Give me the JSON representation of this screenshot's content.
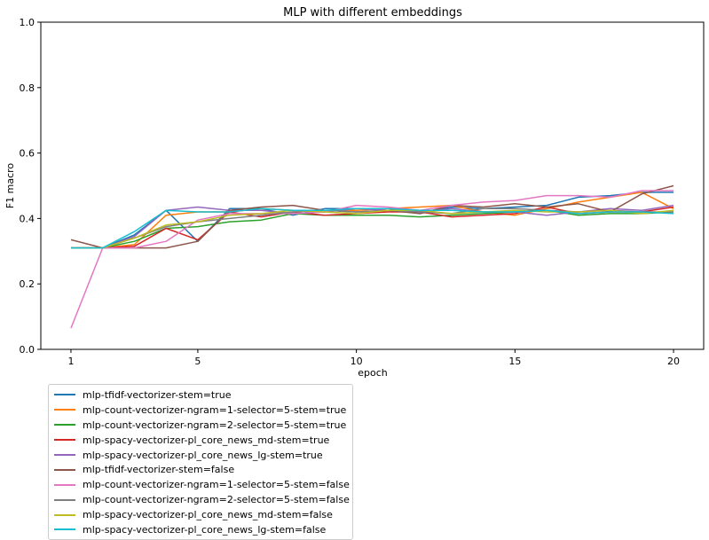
{
  "chart_data": {
    "type": "line",
    "title": "MLP with different embeddings",
    "xlabel": "epoch",
    "ylabel": "F1 macro",
    "xlim": [
      0.05,
      20.95
    ],
    "ylim": [
      0.0,
      1.0
    ],
    "xticks": [
      1,
      5,
      10,
      15,
      20
    ],
    "yticks": [
      0.0,
      0.2,
      0.4,
      0.6,
      0.8,
      1.0
    ],
    "grid": false,
    "legend_position": "below plot, left",
    "x": [
      1,
      2,
      3,
      4,
      5,
      6,
      7,
      8,
      9,
      10,
      11,
      12,
      13,
      14,
      15,
      16,
      17,
      18,
      19,
      20
    ],
    "series": [
      {
        "name": "mlp-tfidf-vectorizer-stem=true",
        "color": "#1f77b4",
        "values": [
          0.31,
          0.31,
          0.35,
          0.425,
          0.33,
          0.43,
          0.43,
          0.41,
          0.43,
          0.43,
          0.43,
          0.415,
          0.435,
          0.43,
          0.435,
          0.44,
          0.465,
          0.47,
          0.48,
          0.48
        ]
      },
      {
        "name": "mlp-count-vectorizer-ngram=1-selector=5-stem=true",
        "color": "#ff7f0e",
        "values": [
          0.31,
          0.31,
          0.32,
          0.41,
          0.42,
          0.42,
          0.43,
          0.425,
          0.425,
          0.425,
          0.43,
          0.435,
          0.44,
          0.42,
          0.41,
          0.43,
          0.45,
          0.465,
          0.48,
          0.43
        ]
      },
      {
        "name": "mlp-count-vectorizer-ngram=2-selector=5-stem=true",
        "color": "#2ca02c",
        "values": [
          0.31,
          0.31,
          0.33,
          0.37,
          0.375,
          0.39,
          0.395,
          0.415,
          0.41,
          0.41,
          0.41,
          0.405,
          0.41,
          0.415,
          0.42,
          0.425,
          0.41,
          0.415,
          0.415,
          0.42
        ]
      },
      {
        "name": "mlp-spacy-vectorizer-pl_core_news_md-stem=true",
        "color": "#d62728",
        "values": [
          0.31,
          0.31,
          0.315,
          0.37,
          0.335,
          0.42,
          0.405,
          0.42,
          0.41,
          0.415,
          0.42,
          0.42,
          0.405,
          0.41,
          0.415,
          0.435,
          0.415,
          0.42,
          0.42,
          0.435
        ]
      },
      {
        "name": "mlp-spacy-vectorizer-pl_core_news_lg-stem=true",
        "color": "#9467bd",
        "values": [
          0.31,
          0.31,
          0.345,
          0.425,
          0.435,
          0.425,
          0.425,
          0.415,
          0.42,
          0.43,
          0.425,
          0.42,
          0.43,
          0.42,
          0.42,
          0.41,
          0.42,
          0.43,
          0.425,
          0.44
        ]
      },
      {
        "name": "mlp-tfidf-vectorizer-stem=false",
        "color": "#8c564b",
        "values": [
          0.335,
          0.31,
          0.31,
          0.31,
          0.33,
          0.425,
          0.435,
          0.44,
          0.425,
          0.42,
          0.425,
          0.415,
          0.44,
          0.435,
          0.445,
          0.435,
          0.445,
          0.42,
          0.475,
          0.5
        ]
      },
      {
        "name": "mlp-count-vectorizer-ngram=1-selector=5-stem=false",
        "color": "#e377c2",
        "values": [
          0.065,
          0.31,
          0.31,
          0.33,
          0.395,
          0.415,
          0.415,
          0.415,
          0.42,
          0.44,
          0.435,
          0.425,
          0.44,
          0.45,
          0.455,
          0.47,
          0.47,
          0.465,
          0.485,
          0.485
        ]
      },
      {
        "name": "mlp-count-vectorizer-ngram=2-selector=5-stem=false",
        "color": "#7f7f7f",
        "values": [
          0.31,
          0.31,
          0.34,
          0.375,
          0.39,
          0.4,
          0.41,
          0.42,
          0.425,
          0.42,
          0.425,
          0.42,
          0.415,
          0.43,
          0.43,
          0.425,
          0.42,
          0.425,
          0.42,
          0.42
        ]
      },
      {
        "name": "mlp-spacy-vectorizer-pl_core_news_md-stem=false",
        "color": "#bcbd22",
        "values": [
          0.31,
          0.31,
          0.34,
          0.38,
          0.39,
          0.41,
          0.415,
          0.425,
          0.42,
          0.415,
          0.425,
          0.425,
          0.415,
          0.42,
          0.425,
          0.42,
          0.42,
          0.425,
          0.415,
          0.425
        ]
      },
      {
        "name": "mlp-spacy-vectorizer-pl_core_news_lg-stem=false",
        "color": "#17becf",
        "values": [
          0.31,
          0.31,
          0.36,
          0.425,
          0.42,
          0.42,
          0.43,
          0.425,
          0.425,
          0.43,
          0.43,
          0.425,
          0.425,
          0.42,
          0.42,
          0.425,
          0.415,
          0.42,
          0.42,
          0.415
        ]
      }
    ]
  }
}
